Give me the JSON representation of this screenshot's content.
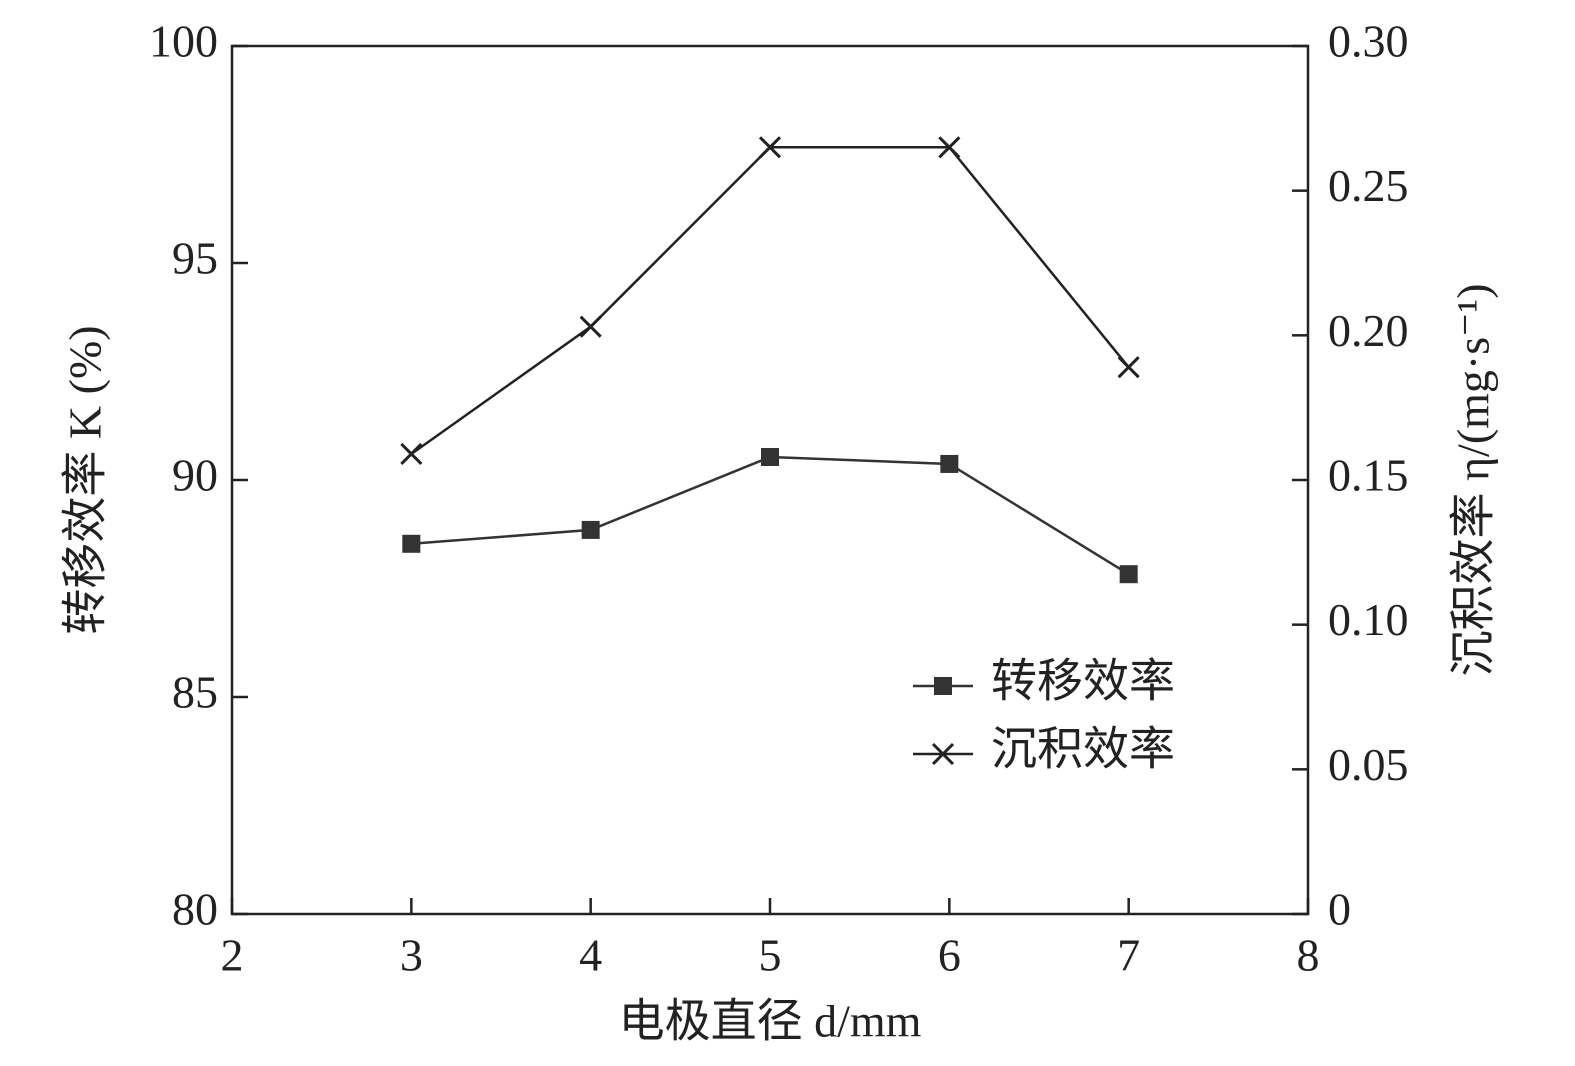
{
  "chart_data": {
    "type": "line",
    "x_label": "电极直径 d/mm",
    "y_label": "转移效率 K (%)",
    "y2_label": "沉积效率 η/(mg·s⁻¹)",
    "x": [
      3,
      4,
      5,
      6,
      7
    ],
    "series": [
      {
        "name": "转移效率",
        "color": "#333333",
        "marker": "square",
        "values": [
          88.53,
          88.85,
          90.53,
          90.37,
          87.83
        ]
      },
      {
        "name": "沉积效率",
        "color": "#222222",
        "marker": "x",
        "axis": "y2",
        "values": [
          0.159,
          0.203,
          0.265,
          0.265,
          0.189
        ]
      }
    ],
    "xlim": [
      2,
      8
    ],
    "xticks": [
      2,
      3,
      4,
      5,
      6,
      7,
      8
    ],
    "ylim": [
      80,
      100
    ],
    "yticks": [
      80,
      85,
      90,
      95,
      100
    ],
    "y2lim": [
      0,
      0.3
    ],
    "y2ticks": [
      0,
      0.05,
      {
        "value": 0.1,
        "label": "0.10"
      },
      0.15,
      {
        "value": 0.2,
        "label": "0.20"
      },
      0.25,
      {
        "value": 0.3,
        "label": "0.30"
      }
    ],
    "grid": false,
    "legend": "lower right"
  }
}
